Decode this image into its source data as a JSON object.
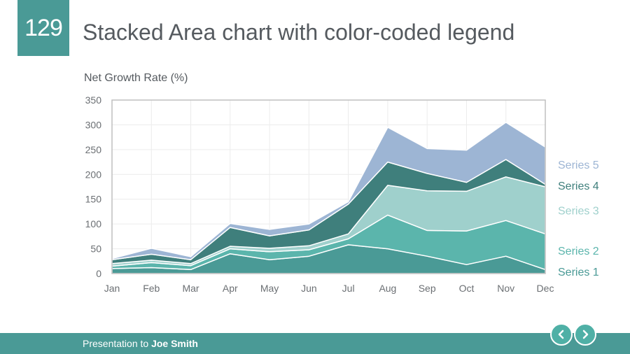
{
  "slide": {
    "number": "129",
    "title": "Stacked Area chart with color-coded legend"
  },
  "footer": {
    "prefix": "Presentation to ",
    "name": "Joe Smith"
  },
  "colors": {
    "accent": "#4a9a96",
    "nav_button": "#4fb0a6",
    "series": [
      "#4a9a96",
      "#5bb5ac",
      "#9fd0cc",
      "#3f7f7c",
      "#9db5d4"
    ]
  },
  "icons": {
    "prev": "chevron-left-icon",
    "next": "chevron-right-icon"
  },
  "chart_data": {
    "type": "area",
    "stacked": true,
    "title": "",
    "xlabel": "",
    "ylabel": "Net Growth Rate (%)",
    "categories": [
      "Jan",
      "Feb",
      "Mar",
      "Apr",
      "May",
      "Jun",
      "Jul",
      "Aug",
      "Sep",
      "Oct",
      "Nov",
      "Dec"
    ],
    "ylim": [
      0,
      350
    ],
    "yticks": [
      0,
      50,
      100,
      150,
      200,
      250,
      300,
      350
    ],
    "grid": true,
    "legend_position": "right",
    "series": [
      {
        "name": "Series 1",
        "values": [
          10,
          12,
          8,
          40,
          28,
          35,
          58,
          50,
          35,
          18,
          35,
          8
        ]
      },
      {
        "name": "Series 2",
        "values": [
          5,
          10,
          8,
          10,
          16,
          13,
          12,
          68,
          52,
          68,
          72,
          72
        ]
      },
      {
        "name": "Series 3",
        "values": [
          5,
          5,
          4,
          5,
          7,
          8,
          10,
          60,
          80,
          80,
          88,
          95
        ]
      },
      {
        "name": "Series 4",
        "values": [
          8,
          12,
          8,
          38,
          25,
          32,
          60,
          47,
          35,
          18,
          35,
          5
        ]
      },
      {
        "name": "Series 5",
        "values": [
          2,
          12,
          6,
          8,
          13,
          12,
          5,
          70,
          50,
          65,
          75,
          75
        ]
      }
    ]
  }
}
